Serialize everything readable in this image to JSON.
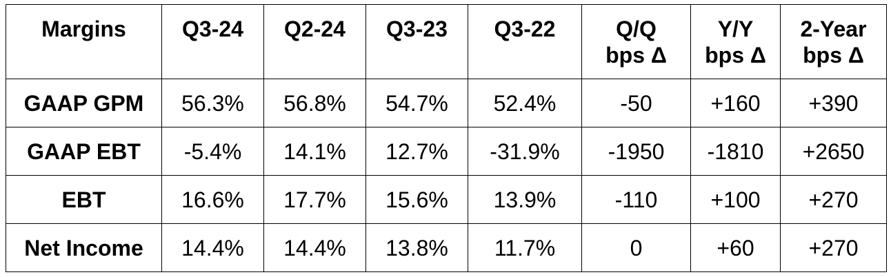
{
  "table": {
    "headers": [
      "Margins",
      "Q3-24",
      "Q2-24",
      "Q3-23",
      "Q3-22",
      "Q/Q\nbps Δ",
      "Y/Y\nbps Δ",
      "2-Year\nbps Δ"
    ],
    "header_lines": [
      [
        "Margins"
      ],
      [
        "Q3-24"
      ],
      [
        "Q2-24"
      ],
      [
        "Q3-23"
      ],
      [
        "Q3-22"
      ],
      [
        "Q/Q",
        "bps Δ"
      ],
      [
        "Y/Y",
        "bps Δ"
      ],
      [
        "2-Year",
        "bps Δ"
      ]
    ],
    "rows": [
      [
        "GAAP GPM",
        "56.3%",
        "56.8%",
        "54.7%",
        "52.4%",
        "-50",
        "+160",
        "+390"
      ],
      [
        "GAAP EBT",
        "-5.4%",
        "14.1%",
        "12.7%",
        "-31.9%",
        "-1950",
        "-1810",
        "+2650"
      ],
      [
        "EBT",
        "16.6%",
        "17.7%",
        "15.6%",
        "13.9%",
        "-110",
        "+100",
        "+270"
      ],
      [
        "Net Income",
        "14.4%",
        "14.4%",
        "13.8%",
        "11.7%",
        "0",
        "+60",
        "+270"
      ]
    ]
  }
}
